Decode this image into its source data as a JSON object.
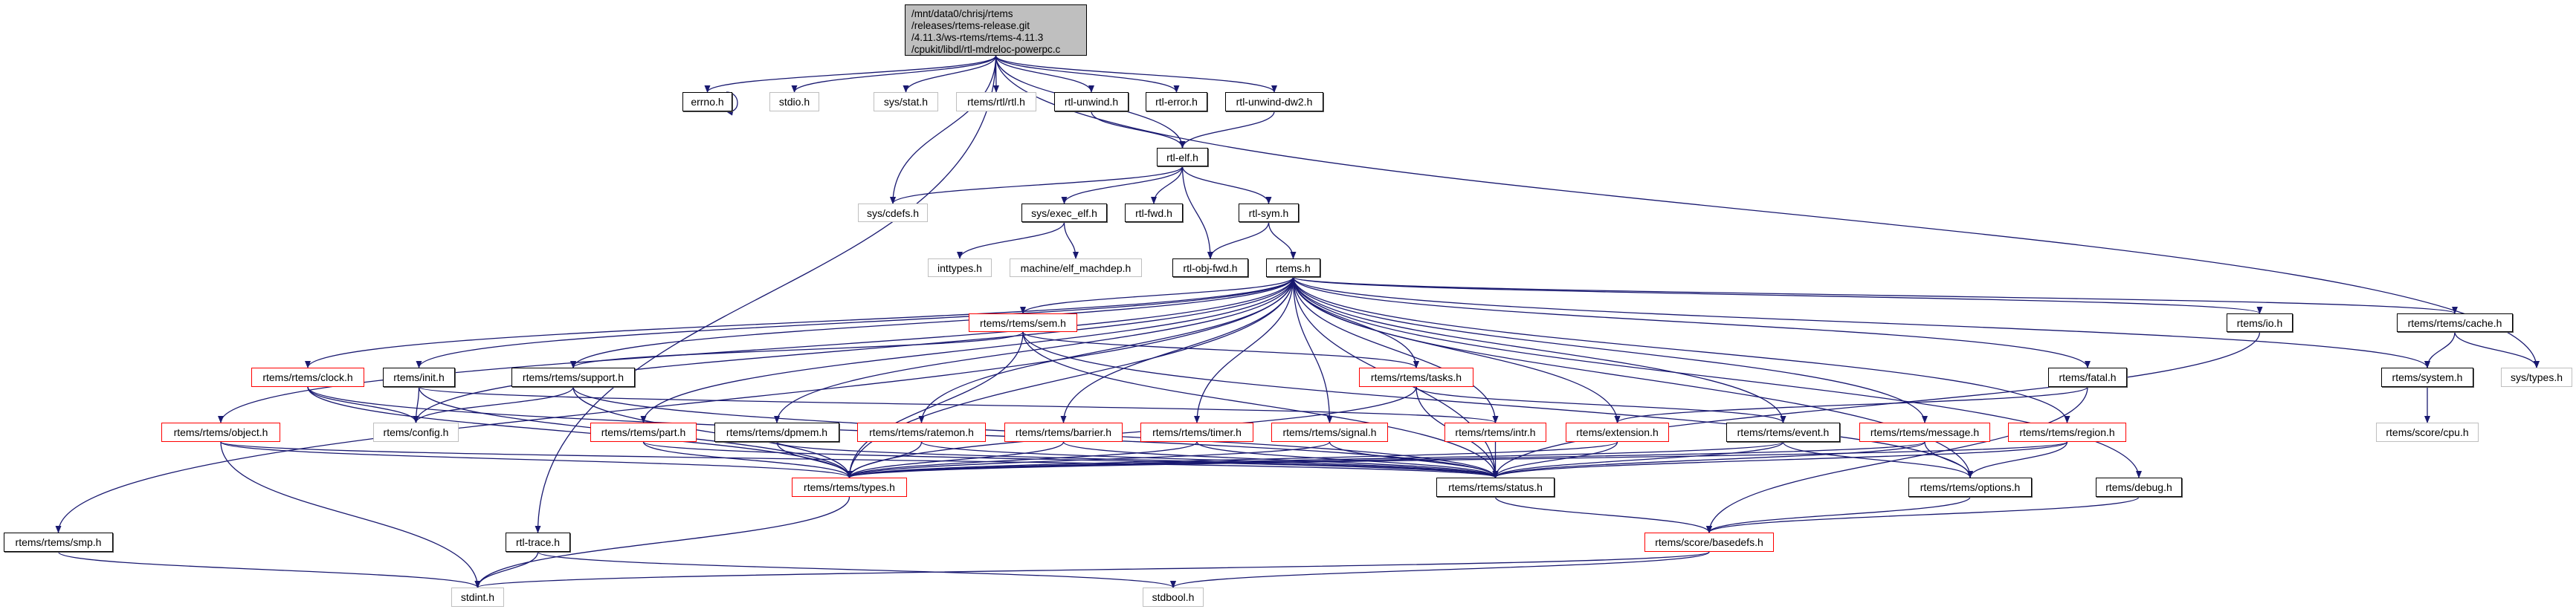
{
  "colors": {
    "edge": "#191970",
    "red_border": "#ff0000",
    "gray_border": "#bfbfbf",
    "main_fill": "#bfbfbf"
  },
  "nodes": {
    "main": {
      "label": "/mnt/data0/chrisj/rtems\n/releases/rtems-release.git\n/4.11.3/ws-rtems/rtems-4.11.3\n/cpukit/libdl/rtl-mdreloc-powerpc.c",
      "kind": "main"
    },
    "errno": {
      "label": "errno.h",
      "kind": "normal"
    },
    "stdio": {
      "label": "stdio.h",
      "kind": "gray"
    },
    "sysstat": {
      "label": "sys/stat.h",
      "kind": "gray"
    },
    "rtl": {
      "label": "rtems/rtl/rtl.h",
      "kind": "gray"
    },
    "unwind": {
      "label": "rtl-unwind.h",
      "kind": "normal"
    },
    "rtlerror": {
      "label": "rtl-error.h",
      "kind": "normal"
    },
    "unwinddw2": {
      "label": "rtl-unwind-dw2.h",
      "kind": "normal"
    },
    "rtlelf": {
      "label": "rtl-elf.h",
      "kind": "normal"
    },
    "cdefs": {
      "label": "sys/cdefs.h",
      "kind": "gray"
    },
    "execelf": {
      "label": "sys/exec_elf.h",
      "kind": "normal"
    },
    "rtlfwd": {
      "label": "rtl-fwd.h",
      "kind": "normal"
    },
    "rtlsym": {
      "label": "rtl-sym.h",
      "kind": "normal"
    },
    "inttypes": {
      "label": "inttypes.h",
      "kind": "gray"
    },
    "machdep": {
      "label": "machine/elf_machdep.h",
      "kind": "gray"
    },
    "objfwd": {
      "label": "rtl-obj-fwd.h",
      "kind": "normal"
    },
    "rtems": {
      "label": "rtems.h",
      "kind": "normal"
    },
    "sem": {
      "label": "rtems/rtems/sem.h",
      "kind": "red"
    },
    "io": {
      "label": "rtems/io.h",
      "kind": "normal"
    },
    "cache": {
      "label": "rtems/rtems/cache.h",
      "kind": "normal"
    },
    "clock": {
      "label": "rtems/rtems/clock.h",
      "kind": "red"
    },
    "init": {
      "label": "rtems/init.h",
      "kind": "normal"
    },
    "support": {
      "label": "rtems/rtems/support.h",
      "kind": "normal"
    },
    "tasks": {
      "label": "rtems/rtems/tasks.h",
      "kind": "red"
    },
    "fatal": {
      "label": "rtems/fatal.h",
      "kind": "normal"
    },
    "system": {
      "label": "rtems/system.h",
      "kind": "normal"
    },
    "systypes": {
      "label": "sys/types.h",
      "kind": "gray"
    },
    "object": {
      "label": "rtems/rtems/object.h",
      "kind": "red"
    },
    "config": {
      "label": "rtems/config.h",
      "kind": "gray"
    },
    "part": {
      "label": "rtems/rtems/part.h",
      "kind": "red"
    },
    "dpmem": {
      "label": "rtems/rtems/dpmem.h",
      "kind": "normal"
    },
    "ratemon": {
      "label": "rtems/rtems/ratemon.h",
      "kind": "red"
    },
    "barrier": {
      "label": "rtems/rtems/barrier.h",
      "kind": "red"
    },
    "timer": {
      "label": "rtems/rtems/timer.h",
      "kind": "red"
    },
    "signal": {
      "label": "rtems/rtems/signal.h",
      "kind": "red"
    },
    "intr": {
      "label": "rtems/rtems/intr.h",
      "kind": "red"
    },
    "extension": {
      "label": "rtems/extension.h",
      "kind": "red"
    },
    "event": {
      "label": "rtems/rtems/event.h",
      "kind": "normal"
    },
    "message": {
      "label": "rtems/rtems/message.h",
      "kind": "red"
    },
    "region": {
      "label": "rtems/rtems/region.h",
      "kind": "red"
    },
    "cpu": {
      "label": "rtems/score/cpu.h",
      "kind": "gray"
    },
    "types": {
      "label": "rtems/rtems/types.h",
      "kind": "red"
    },
    "status": {
      "label": "rtems/rtems/status.h",
      "kind": "normal"
    },
    "options": {
      "label": "rtems/rtems/options.h",
      "kind": "normal"
    },
    "debug": {
      "label": "rtems/debug.h",
      "kind": "normal"
    },
    "smp": {
      "label": "rtems/rtems/smp.h",
      "kind": "normal"
    },
    "trace": {
      "label": "rtl-trace.h",
      "kind": "normal"
    },
    "basedefs": {
      "label": "rtems/score/basedefs.h",
      "kind": "red"
    },
    "stdint": {
      "label": "stdint.h",
      "kind": "gray"
    },
    "stdbool": {
      "label": "stdbool.h",
      "kind": "gray"
    }
  },
  "edges": [
    [
      "main",
      "errno"
    ],
    [
      "main",
      "stdio"
    ],
    [
      "main",
      "sysstat"
    ],
    [
      "main",
      "rtl"
    ],
    [
      "main",
      "unwind"
    ],
    [
      "main",
      "rtlerror"
    ],
    [
      "main",
      "unwinddw2"
    ],
    [
      "main",
      "rtlelf"
    ],
    [
      "main",
      "cdefs"
    ],
    [
      "main",
      "trace"
    ],
    [
      "main",
      "systypes"
    ],
    [
      "errno",
      "errno"
    ],
    [
      "unwind",
      "rtlelf"
    ],
    [
      "unwinddw2",
      "rtlelf"
    ],
    [
      "rtlelf",
      "cdefs"
    ],
    [
      "rtlelf",
      "execelf"
    ],
    [
      "rtlelf",
      "rtlfwd"
    ],
    [
      "rtlelf",
      "objfwd"
    ],
    [
      "rtlelf",
      "rtlsym"
    ],
    [
      "execelf",
      "inttypes"
    ],
    [
      "execelf",
      "machdep"
    ],
    [
      "rtlsym",
      "objfwd"
    ],
    [
      "rtlsym",
      "rtems"
    ],
    [
      "rtems",
      "smp"
    ],
    [
      "rtems",
      "object"
    ],
    [
      "rtems",
      "clock"
    ],
    [
      "rtems",
      "init"
    ],
    [
      "rtems",
      "support"
    ],
    [
      "rtems",
      "config"
    ],
    [
      "rtems",
      "sem"
    ],
    [
      "rtems",
      "part"
    ],
    [
      "rtems",
      "dpmem"
    ],
    [
      "rtems",
      "ratemon"
    ],
    [
      "rtems",
      "barrier"
    ],
    [
      "rtems",
      "timer"
    ],
    [
      "rtems",
      "signal"
    ],
    [
      "rtems",
      "tasks"
    ],
    [
      "rtems",
      "intr"
    ],
    [
      "rtems",
      "extension"
    ],
    [
      "rtems",
      "event"
    ],
    [
      "rtems",
      "message"
    ],
    [
      "rtems",
      "region"
    ],
    [
      "rtems",
      "fatal"
    ],
    [
      "rtems",
      "io"
    ],
    [
      "rtems",
      "system"
    ],
    [
      "rtems",
      "cache"
    ],
    [
      "rtems",
      "options"
    ],
    [
      "rtems",
      "debug"
    ],
    [
      "rtems",
      "status"
    ],
    [
      "rtems",
      "types"
    ],
    [
      "sem",
      "support"
    ],
    [
      "sem",
      "types"
    ],
    [
      "sem",
      "tasks"
    ],
    [
      "sem",
      "status"
    ],
    [
      "sem",
      "options"
    ],
    [
      "clock",
      "config"
    ],
    [
      "clock",
      "types"
    ],
    [
      "clock",
      "status"
    ],
    [
      "init",
      "config"
    ],
    [
      "init",
      "types"
    ],
    [
      "init",
      "intr"
    ],
    [
      "support",
      "config"
    ],
    [
      "support",
      "types"
    ],
    [
      "support",
      "status"
    ],
    [
      "object",
      "stdint"
    ],
    [
      "object",
      "types"
    ],
    [
      "object",
      "status"
    ],
    [
      "part",
      "types"
    ],
    [
      "part",
      "status"
    ],
    [
      "dpmem",
      "types"
    ],
    [
      "dpmem",
      "status"
    ],
    [
      "ratemon",
      "types"
    ],
    [
      "ratemon",
      "status"
    ],
    [
      "barrier",
      "types"
    ],
    [
      "barrier",
      "status"
    ],
    [
      "timer",
      "types"
    ],
    [
      "timer",
      "status"
    ],
    [
      "signal",
      "types"
    ],
    [
      "signal",
      "status"
    ],
    [
      "tasks",
      "types"
    ],
    [
      "tasks",
      "status"
    ],
    [
      "tasks",
      "event"
    ],
    [
      "intr",
      "status"
    ],
    [
      "extension",
      "types"
    ],
    [
      "extension",
      "status"
    ],
    [
      "event",
      "types"
    ],
    [
      "event",
      "status"
    ],
    [
      "event",
      "options"
    ],
    [
      "message",
      "types"
    ],
    [
      "message",
      "status"
    ],
    [
      "message",
      "options"
    ],
    [
      "region",
      "types"
    ],
    [
      "region",
      "status"
    ],
    [
      "region",
      "options"
    ],
    [
      "fatal",
      "extension"
    ],
    [
      "fatal",
      "basedefs"
    ],
    [
      "io",
      "status"
    ],
    [
      "cache",
      "system"
    ],
    [
      "cache",
      "systypes"
    ],
    [
      "system",
      "cpu"
    ],
    [
      "types",
      "stdint"
    ],
    [
      "status",
      "basedefs"
    ],
    [
      "options",
      "basedefs"
    ],
    [
      "debug",
      "basedefs"
    ],
    [
      "basedefs",
      "stdint"
    ],
    [
      "basedefs",
      "stdbool"
    ],
    [
      "trace",
      "stdint"
    ],
    [
      "trace",
      "stdbool"
    ],
    [
      "smp",
      "stdint"
    ]
  ]
}
